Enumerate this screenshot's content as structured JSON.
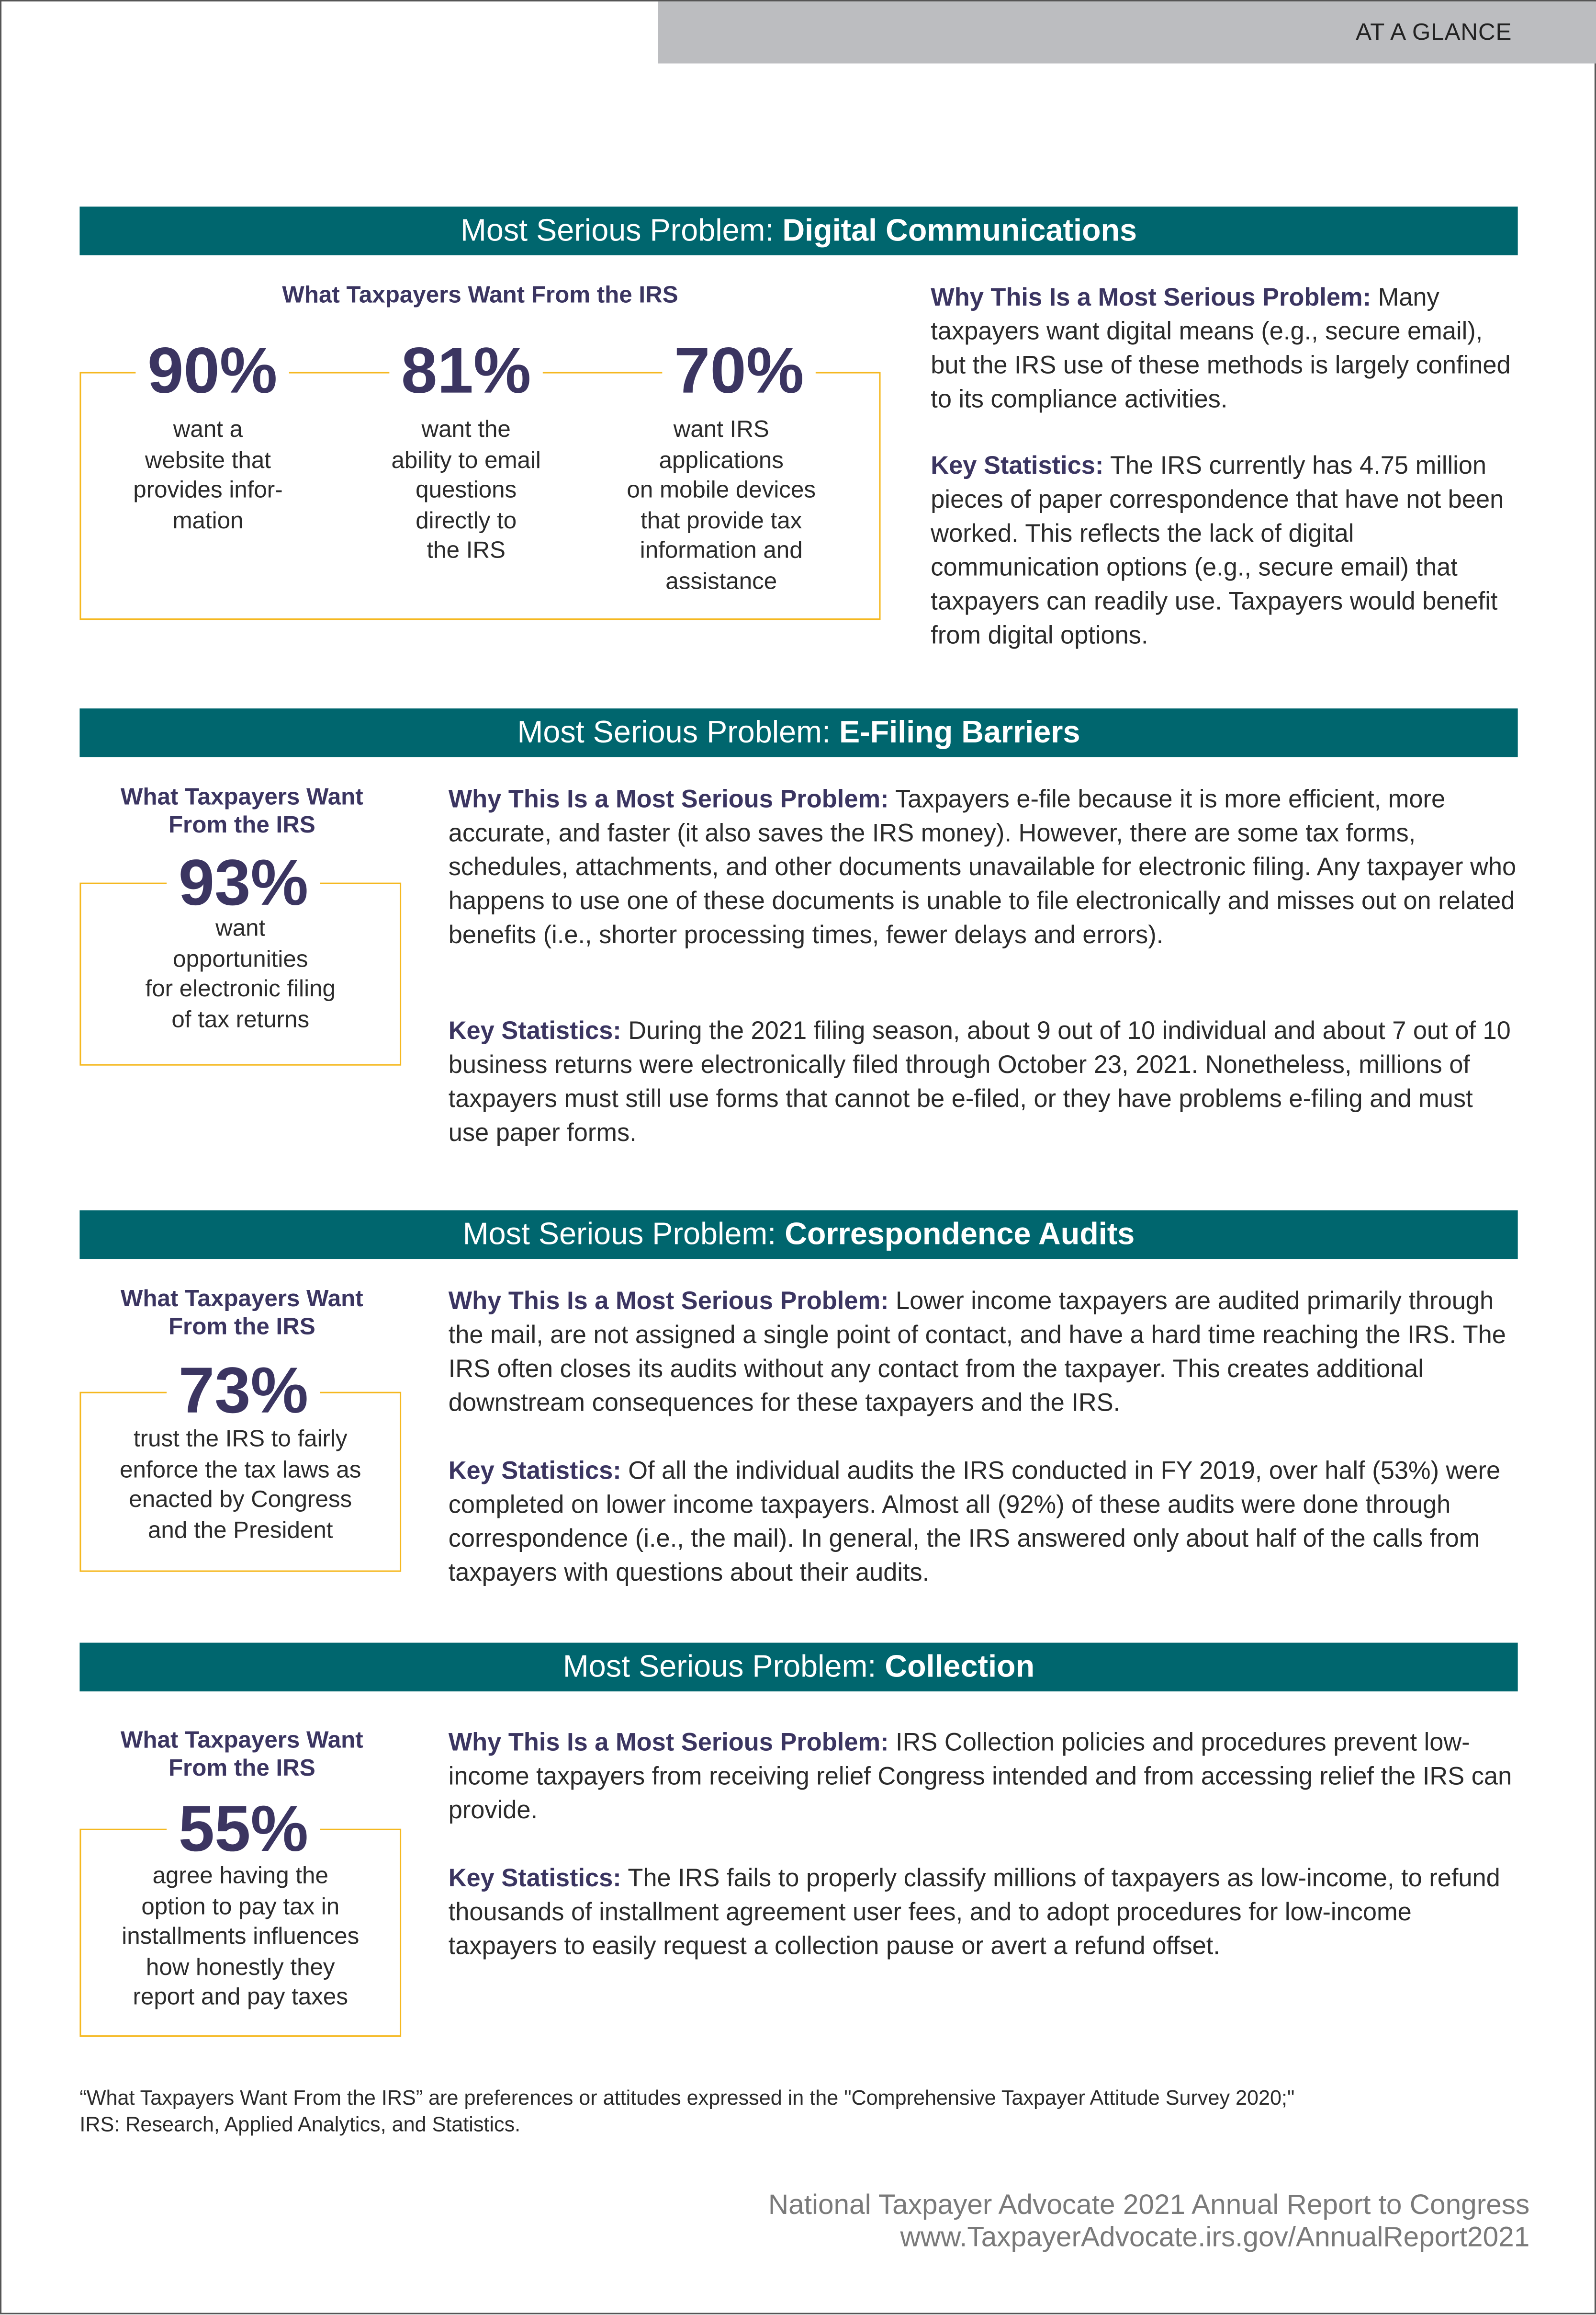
{
  "header": {
    "tag": "AT A GLANCE"
  },
  "colors": {
    "banner": "#00666e",
    "accent_box": "#f5b820",
    "heading": "#3b3561",
    "topbar": "#bcbdc0"
  },
  "banner_prefix": "Most Serious Problem: ",
  "sections": [
    {
      "title": "Digital Communications",
      "want_heading": "What Taxpayers Want From the IRS",
      "stats": [
        {
          "value": "90%",
          "desc": "want a\nwebsite that\nprovides  infor-\nmation"
        },
        {
          "value": "81%",
          "desc": "want the\nability to email\nquestions\ndirectly to\nthe IRS"
        },
        {
          "value": "70%",
          "desc": "want IRS\napplications\non mobile devices\nthat provide tax\ninformation and\nassistance"
        }
      ],
      "why_label": "Why This Is a Most Serious Problem:",
      "why_text": " Many taxpayers want digital means (e.g., secure email), but the IRS use of these methods is largely confined to its compliance activities.",
      "key_label": "Key Statistics:",
      "key_text": " The IRS currently has 4.75 million pieces of paper correspondence that have not been worked. This reflects the lack of digital communication options (e.g., secure email) that taxpayers can readily use. Taxpayers would benefit from digital options."
    },
    {
      "title": "E-Filing Barriers",
      "want_heading": "What Taxpayers Want\nFrom the IRS",
      "stats": [
        {
          "value": "93%",
          "desc": "want\nopportunities\nfor electronic filing\nof tax returns"
        }
      ],
      "why_label": "Why This Is a Most Serious Problem:",
      "why_text": " Taxpayers e-file because it is more efficient, more accurate, and faster (it also saves the IRS money). However, there are some tax forms, schedules, attachments, and other documents unavailable for electronic filing. Any taxpayer who happens to use one of these documents is unable to file electronically and misses out on related benefits (i.e., shorter processing times, fewer delays and errors).",
      "key_label": "Key Statistics:",
      "key_text": " During the 2021 filing season, about 9 out of 10 individual and about 7 out of 10 business returns were electronically filed through October 23, 2021. Nonetheless, millions of taxpayers must still use forms that cannot be e-filed, or they have problems e-filing and must use paper forms."
    },
    {
      "title": "Correspondence Audits",
      "want_heading": "What Taxpayers Want\nFrom the IRS",
      "stats": [
        {
          "value": "73%",
          "desc": "trust the IRS to fairly\nenforce the tax laws as\nenacted by Congress\nand the President"
        }
      ],
      "why_label": "Why This Is a Most Serious Problem:",
      "why_text": " Lower income taxpayers are audited primarily through the mail, are not assigned a single point of contact, and have a hard time reaching the IRS. The IRS often closes its audits without any contact from the taxpayer. This creates additional downstream consequences for these taxpayers and the IRS.",
      "key_label": "Key Statistics:",
      "key_text": " Of all the individual audits the IRS conducted in FY 2019, over half (53%) were completed on lower income taxpayers. Almost all (92%) of these audits were done through correspondence (i.e., the mail). In general, the IRS answered only about half of the calls from taxpayers with questions about their audits."
    },
    {
      "title": "Collection",
      "want_heading": "What Taxpayers Want\nFrom the IRS",
      "stats": [
        {
          "value": "55%",
          "desc": "agree having the\noption to pay tax in\ninstallments influences\nhow honestly they\nreport and pay taxes"
        }
      ],
      "why_label": "Why This Is a Most Serious Problem:",
      "why_text": " IRS Collection policies and procedures prevent low-income taxpayers from receiving relief Congress intended and from accessing relief the IRS can provide.",
      "key_label": "Key Statistics:",
      "key_text": " The IRS fails to properly classify millions of taxpayers as low-income, to refund thousands of installment agreement user fees, and to adopt procedures for low-income taxpayers to easily request a collection pause or avert a refund offset."
    }
  ],
  "footnote": {
    "line1": "“What Taxpayers Want From the IRS” are preferences or attitudes expressed in the \"Comprehensive Taxpayer Attitude Survey 2020;\"",
    "line2": "IRS: Research, Applied Analytics, and Statistics."
  },
  "footer": {
    "line1": "National Taxpayer Advocate 2021 Annual Report to Congress",
    "line2": "www.TaxpayerAdvocate.irs.gov/AnnualReport2021"
  }
}
